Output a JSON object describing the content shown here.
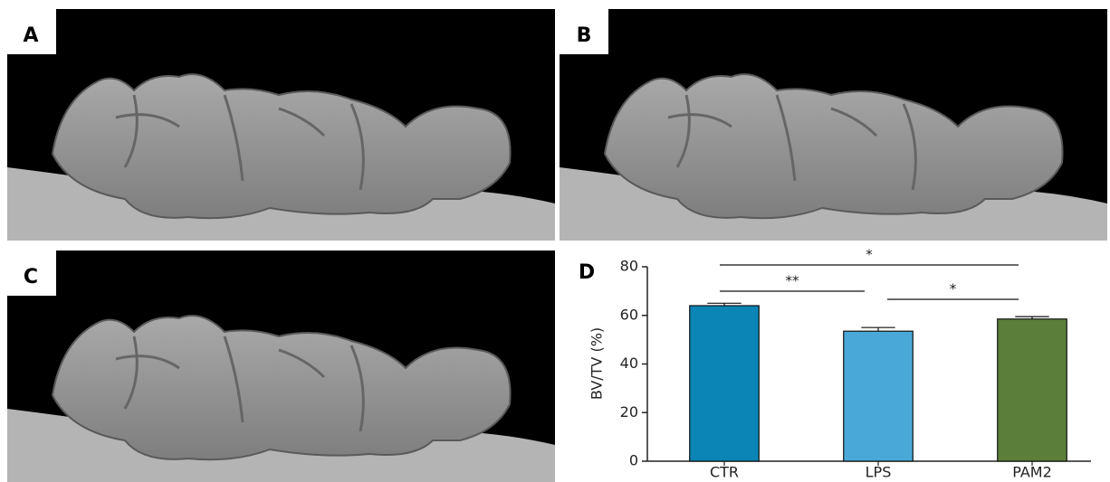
{
  "panels": [
    {
      "label": "A"
    },
    {
      "label": "B"
    },
    {
      "label": "C"
    },
    {
      "label": "D"
    }
  ],
  "chart_data": {
    "type": "bar",
    "ylabel": "BV/TV (%)",
    "categories": [
      "CTR",
      "LPS",
      "PAM2"
    ],
    "series": [
      {
        "values": [
          64,
          53.5,
          58.5
        ],
        "errors": [
          1,
          1.5,
          1
        ],
        "colors": [
          "#0a85b5",
          "#4aa8d8",
          "#5b7f3b"
        ]
      }
    ],
    "ylim": [
      0,
      80
    ],
    "yticks": [
      0,
      20,
      40,
      60,
      80
    ],
    "annotations": [
      {
        "text": "*",
        "between": [
          "CTR",
          "PAM2"
        ]
      },
      {
        "text": "**",
        "between": [
          "CTR",
          "LPS"
        ]
      },
      {
        "text": "*",
        "between": [
          "LPS",
          "PAM2"
        ]
      }
    ]
  }
}
